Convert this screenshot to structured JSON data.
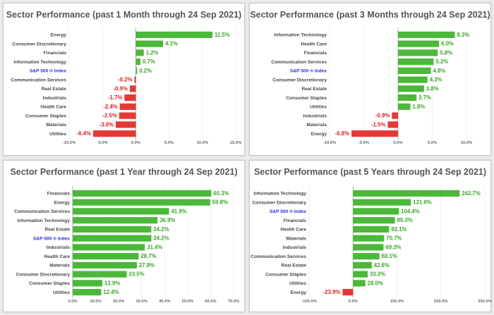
{
  "colors": {
    "positive": "#4cb83a",
    "negative": "#e53935",
    "positive_text": "#3aa628",
    "negative_text": "#d62020",
    "highlight_label": "#2b2be0",
    "grid": "#e4e4e4",
    "zero_line": "#999999"
  },
  "chart_data": [
    {
      "type": "bar",
      "orientation": "horizontal",
      "title": "Sector Performance (past 1 Month through 24 Sep 2021)",
      "categories": [
        "Energy",
        "Consumer Discretionary",
        "Financials",
        "Information Technology",
        "S&P 500 ® Index",
        "Communication Services",
        "Real Estate",
        "Industrials",
        "Health Care",
        "Consumer Staples",
        "Materials",
        "Utilities"
      ],
      "values": [
        11.5,
        4.1,
        1.2,
        0.7,
        0.2,
        -0.2,
        -0.9,
        -1.7,
        -2.4,
        -2.5,
        -3.0,
        -6.4
      ],
      "value_labels": [
        "11.5%",
        "4.1%",
        "1.2%",
        "0.7%",
        "0.2%",
        "-0.2%",
        "-0.9%",
        "-1.7%",
        "-2.4%",
        "-2.5%",
        "-3.0%",
        "-6.4%"
      ],
      "highlight": "S&P 500 ® Index",
      "xlim": [
        -10,
        15
      ],
      "xticks": [
        -10,
        -5,
        0,
        5,
        10,
        15
      ],
      "xtick_labels": [
        "-10.0%",
        "-5.0%",
        "0.0%",
        "5.0%",
        "10.0%",
        "15.0%"
      ],
      "grid": true
    },
    {
      "type": "bar",
      "orientation": "horizontal",
      "title": "Sector Performance (past 3 Months through 24 Sep 2021)",
      "categories": [
        "Information Technology",
        "Health Care",
        "Financials",
        "Communication Services",
        "S&P 500 ® Index",
        "Consumer Discretionary",
        "Real Estate",
        "Consumer Staples",
        "Utilities",
        "Industrials",
        "Materials",
        "Energy"
      ],
      "values": [
        8.3,
        6.0,
        5.8,
        5.2,
        4.8,
        4.3,
        3.8,
        2.7,
        1.8,
        -0.9,
        -1.5,
        -6.8
      ],
      "value_labels": [
        "8.3%",
        "6.0%",
        "5.8%",
        "5.2%",
        "4.8%",
        "4.3%",
        "3.8%",
        "2.7%",
        "1.8%",
        "-0.9%",
        "-1.5%",
        "-6.8%"
      ],
      "highlight": "S&P 500 ® Index",
      "xlim": [
        -10,
        10
      ],
      "xticks": [
        -10,
        -5,
        0,
        5,
        10
      ],
      "xtick_labels": [
        "-10.0%",
        "-5.0%",
        "0.0%",
        "5.0%",
        "10.0%"
      ],
      "grid": true
    },
    {
      "type": "bar",
      "orientation": "horizontal",
      "title": "Sector Performance (past 1 Year through 24 Sep 2021)",
      "categories": [
        "Financials",
        "Energy",
        "Communication Services",
        "Information Technology",
        "Real Estate",
        "S&P 500 ® Index",
        "Industrials",
        "Health Care",
        "Materials",
        "Consumer Discretionary",
        "Consumer Staples",
        "Utilities"
      ],
      "values": [
        60.3,
        59.8,
        41.9,
        36.9,
        34.2,
        34.2,
        31.4,
        28.7,
        27.9,
        23.5,
        12.9,
        12.4
      ],
      "value_labels": [
        "60.3%",
        "59.8%",
        "41.9%",
        "36.9%",
        "34.2%",
        "34.2%",
        "31.4%",
        "28.7%",
        "27.9%",
        "23.5%",
        "12.9%",
        "12.4%"
      ],
      "highlight": "S&P 500 ® Index",
      "xlim": [
        0,
        70
      ],
      "xticks": [
        0,
        10,
        20,
        30,
        40,
        50,
        60,
        70
      ],
      "xtick_labels": [
        "0.0%",
        "10.0%",
        "20.0%",
        "30.0%",
        "40.0%",
        "50.0%",
        "60.0%",
        "70.0%"
      ],
      "grid": true
    },
    {
      "type": "bar",
      "orientation": "horizontal",
      "title": "Sector Performance (past 5 Years through 24 Sep 2021)",
      "categories": [
        "Information Technology",
        "Consumer Discretionary",
        "S&P 500 ® Index",
        "Financials",
        "Health Care",
        "Materials",
        "Industrials",
        "Communication Services",
        "Real Estate",
        "Consumer Staples",
        "Utilities",
        "Energy"
      ],
      "values": [
        242.7,
        131.6,
        104.4,
        95.3,
        82.1,
        70.7,
        69.3,
        60.1,
        42.6,
        33.3,
        28.0,
        -23.9
      ],
      "value_labels": [
        "242.7%",
        "131.6%",
        "104.4%",
        "95.3%",
        "82.1%",
        "70.7%",
        "69.3%",
        "60.1%",
        "42.6%",
        "33.3%",
        "28.0%",
        "-23.9%"
      ],
      "highlight": "S&P 500 ® Index",
      "xlim": [
        -100,
        300
      ],
      "xticks": [
        -100,
        0,
        100,
        200,
        300
      ],
      "xtick_labels": [
        "-100.0%",
        "0.0%",
        "100.0%",
        "200.0%",
        "300.0%"
      ],
      "grid": true
    }
  ]
}
